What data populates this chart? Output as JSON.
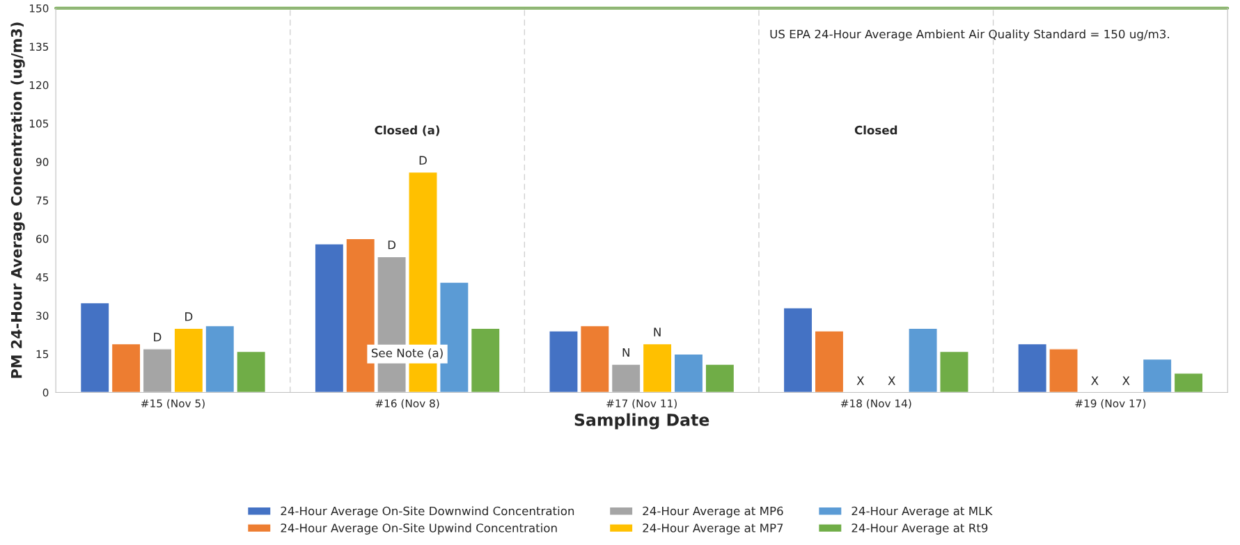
{
  "chart_data": {
    "type": "bar",
    "xlabel": "Sampling Date",
    "ylabel": "PM 24-Hour Average Concentration (ug/m3)",
    "categories": [
      "#15 (Nov 5)",
      "#16 (Nov 8)",
      "#17 (Nov 11)",
      "#18 (Nov 14)",
      "#19 (Nov 17)"
    ],
    "series": [
      {
        "name": "24-Hour Average On-Site Downwind Concentration",
        "color": "#4472c4",
        "values": [
          35,
          58,
          24,
          33,
          19
        ]
      },
      {
        "name": "24-Hour Average On-Site Upwind Concentration",
        "color": "#ed7d31",
        "values": [
          19,
          60,
          26,
          24,
          17
        ]
      },
      {
        "name": "24-Hour Average at MP6",
        "color": "#a5a5a5",
        "values": [
          17,
          53,
          11,
          null,
          null
        ],
        "value_labels": [
          "D",
          "D",
          "N",
          "X",
          "X"
        ]
      },
      {
        "name": "24-Hour Average at MP7",
        "color": "#ffc000",
        "values": [
          25,
          86,
          19,
          null,
          null
        ],
        "value_labels": [
          "D",
          "D",
          "N",
          "X",
          "X"
        ]
      },
      {
        "name": "24-Hour Average at MLK",
        "color": "#5b9bd5",
        "values": [
          26,
          43,
          15,
          25,
          13
        ]
      },
      {
        "name": "24-Hour Average at Rt9",
        "color": "#70ad47",
        "values": [
          16,
          25,
          11,
          16,
          7.5
        ]
      }
    ],
    "ylim": [
      0,
      150
    ],
    "yticks": [
      0,
      15,
      30,
      45,
      60,
      75,
      90,
      105,
      120,
      135,
      150
    ],
    "ref_lines": [
      {
        "axis": "y",
        "value": 150,
        "label": "US EPA 24-Hour Average Ambient Air Quality Standard = 150 ug/m3.",
        "color": "#70ad47"
      }
    ],
    "annotations": [
      "Closed (a)",
      "Closed",
      {
        "text": "See Note (a)",
        "x": "#16 (Nov 8)",
        "y": 15
      }
    ],
    "grid": "x",
    "legend": "bottom"
  }
}
